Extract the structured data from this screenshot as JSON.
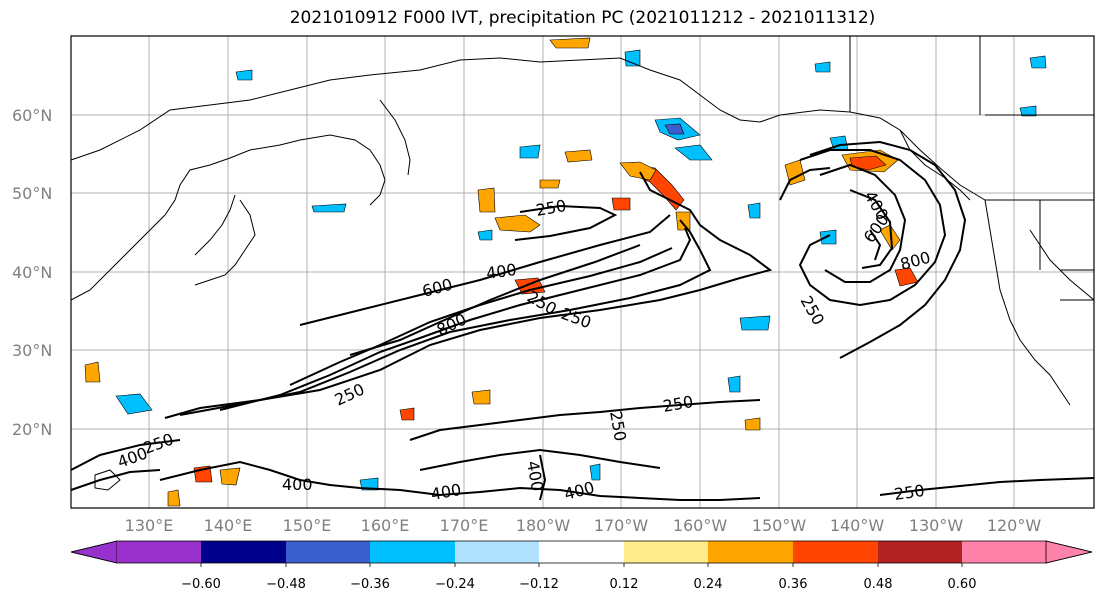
{
  "title": "2021010912 F000 IVT, precipitation PC (2021011212 - 2021011312)",
  "map": {
    "lat_labels": [
      "60°N",
      "50°N",
      "40°N",
      "30°N",
      "20°N"
    ],
    "lon_labels": [
      "130°E",
      "140°E",
      "150°E",
      "160°E",
      "170°E",
      "180°W",
      "170°W",
      "160°W",
      "150°W",
      "140°W",
      "130°W",
      "120°W"
    ],
    "ivt_contour_labels": [
      "250",
      "400",
      "600",
      "800",
      "250",
      "250",
      "400",
      "600",
      "800",
      "250",
      "250",
      "400",
      "250",
      "400",
      "400",
      "400",
      "250",
      "250",
      "400",
      "250"
    ]
  },
  "colorbar": {
    "tick_labels": [
      "−0.60",
      "−0.48",
      "−0.36",
      "−0.24",
      "−0.12",
      "0.12",
      "0.24",
      "0.36",
      "0.48",
      "0.60"
    ],
    "colors": [
      "#9932cc",
      "#00008b",
      "#3a5fcd",
      "#00bfff",
      "#b0e2ff",
      "#ffffff",
      "#ffec8b",
      "#ffa500",
      "#ff4500",
      "#b22222",
      "#ff82ab"
    ]
  }
}
